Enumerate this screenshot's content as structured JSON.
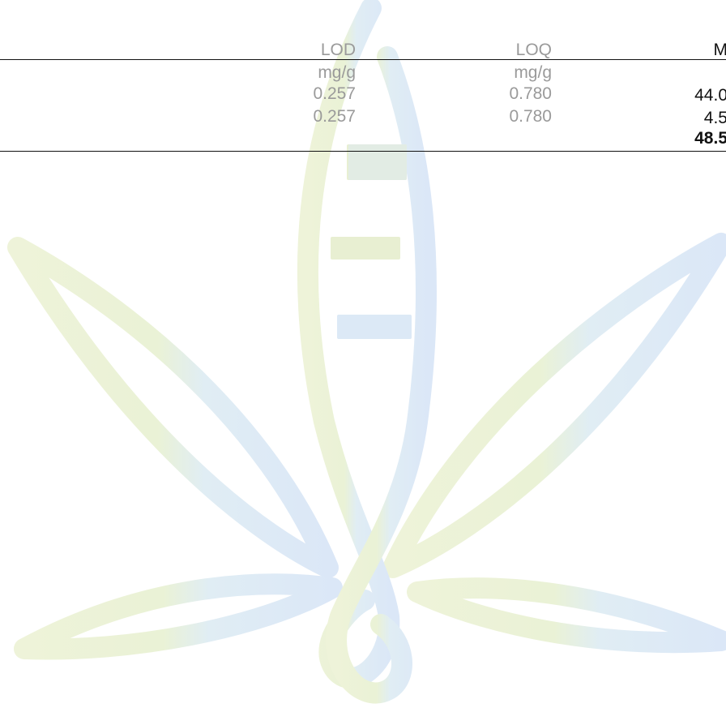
{
  "table": {
    "headers": {
      "lod": "LOD",
      "loq": "LOQ",
      "mass": "M"
    },
    "units": {
      "lod": "mg/g",
      "loq": "mg/g"
    },
    "rows": [
      {
        "lod": "0.257",
        "loq": "0.780",
        "mass": "44.0"
      },
      {
        "lod": "0.257",
        "loq": "0.780",
        "mass": "4.5"
      }
    ],
    "total": {
      "mass": "48.5"
    }
  },
  "colors": {
    "text_muted": "#9a9a9a",
    "text_dark": "#111111",
    "watermark_green": "#e9f0d3",
    "watermark_blue": "#dbe9f8"
  },
  "watermark": {
    "icon": "cannabis-leaf-dna-logo"
  }
}
